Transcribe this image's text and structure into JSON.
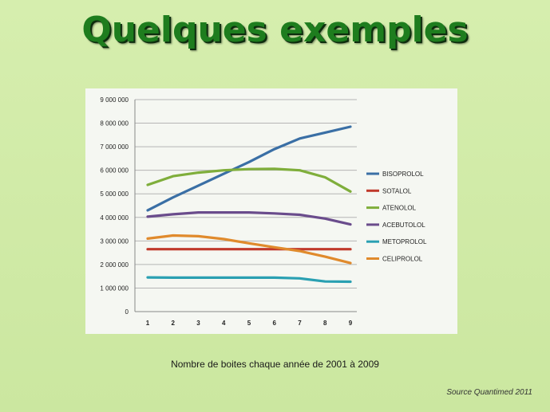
{
  "slide": {
    "title": "Quelques exemples",
    "caption": "Nombre de boites chaque année de 2001 à 2009",
    "source": "Source Quantimed 2011"
  },
  "chart_data": {
    "type": "line",
    "x": [
      1,
      2,
      3,
      4,
      5,
      6,
      7,
      8,
      9
    ],
    "ylim": [
      0,
      9000000
    ],
    "yticks": [
      0,
      1000000,
      2000000,
      3000000,
      4000000,
      5000000,
      6000000,
      7000000,
      8000000,
      9000000
    ],
    "ytick_labels": [
      "0",
      "1 000 000",
      "2 000 000",
      "3 000 000",
      "4 000 000",
      "5 000 000",
      "6 000 000",
      "7 000 000",
      "8 000 000",
      "9 000 000"
    ],
    "grid": true,
    "legend_position": "right",
    "series": [
      {
        "name": "BISOPROLOL",
        "color": "#3a6fa5",
        "values": [
          4300000,
          4850000,
          5350000,
          5850000,
          6350000,
          6900000,
          7350000,
          7600000,
          7850000
        ]
      },
      {
        "name": "SOTALOL",
        "color": "#c0392b",
        "values": [
          2650000,
          2650000,
          2650000,
          2650000,
          2650000,
          2650000,
          2650000,
          2650000,
          2650000
        ]
      },
      {
        "name": "ATENOLOL",
        "color": "#7fae3b",
        "values": [
          5380000,
          5750000,
          5900000,
          6000000,
          6050000,
          6060000,
          6000000,
          5700000,
          5100000
        ]
      },
      {
        "name": "ACEBUTOLOL",
        "color": "#6a4c8c",
        "values": [
          4030000,
          4130000,
          4210000,
          4210000,
          4210000,
          4170000,
          4110000,
          3950000,
          3700000
        ]
      },
      {
        "name": "METOPROLOL",
        "color": "#2aa0b2",
        "values": [
          1450000,
          1440000,
          1440000,
          1440000,
          1440000,
          1440000,
          1410000,
          1280000,
          1270000
        ]
      },
      {
        "name": "CELIPROLOL",
        "color": "#e08a2c",
        "values": [
          3100000,
          3230000,
          3200000,
          3080000,
          2900000,
          2730000,
          2570000,
          2330000,
          2060000
        ]
      }
    ]
  }
}
